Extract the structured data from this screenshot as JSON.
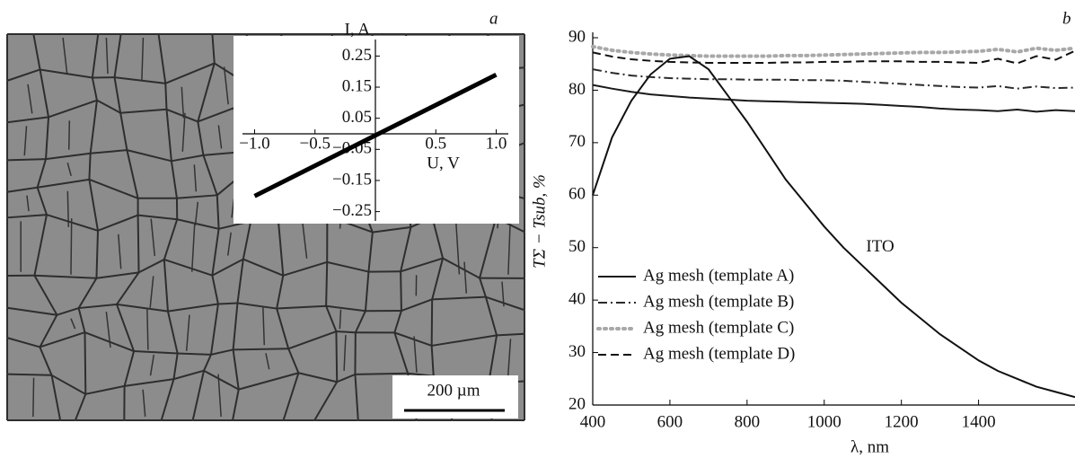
{
  "micrograph": {
    "panel_label": "a",
    "scale_bar": "200 µm"
  },
  "chart_data": [
    {
      "type": "line",
      "x_label": "U, V",
      "y_label": "I, A",
      "axes_at_zero": true,
      "x": [
        -1,
        1
      ],
      "values": [
        -0.2,
        0.19
      ],
      "color": "#000000",
      "xlim": [
        -1.1,
        1.1
      ],
      "ylim": [
        -0.28,
        0.28
      ],
      "xticks": [
        {
          "value": -1,
          "label": "−1.0"
        },
        {
          "value": -0.5,
          "label": "−0.5"
        },
        0.5,
        {
          "value": 1,
          "label": "1.0"
        }
      ],
      "yticks": [
        0.25,
        0.15,
        0.05,
        {
          "value": -0.05,
          "label": "−0.05"
        },
        {
          "value": -0.15,
          "label": "−0.15"
        },
        {
          "value": -0.25,
          "label": "−0.25"
        }
      ]
    },
    {
      "type": "line",
      "panel_label": "b",
      "x_label": "λ, nm",
      "y_label": "TΣ − Tsub, %",
      "annotation": "ITO",
      "xlim": [
        400,
        1650
      ],
      "ylim": [
        20,
        90
      ],
      "xticks": [
        400,
        600,
        800,
        1000,
        1200,
        1400
      ],
      "yticks": [
        20,
        30,
        40,
        50,
        60,
        70,
        80,
        90
      ],
      "legend": "lower left",
      "x": [
        400,
        450,
        500,
        550,
        600,
        650,
        700,
        750,
        800,
        850,
        900,
        950,
        1000,
        1050,
        1100,
        1150,
        1200,
        1250,
        1300,
        1350,
        1400,
        1450,
        1500,
        1550,
        1600,
        1650
      ],
      "series": [
        {
          "name": "Ag mesh (template A)",
          "color": "#1a1a1a",
          "linestyle": "solid",
          "legend": true,
          "values": [
            81,
            80.3,
            79.7,
            79.2,
            78.9,
            78.6,
            78.4,
            78.2,
            78,
            77.9,
            77.8,
            77.7,
            77.6,
            77.5,
            77.4,
            77.2,
            77,
            76.8,
            76.5,
            76.3,
            76.2,
            76,
            76.3,
            75.9,
            76.2,
            76
          ]
        },
        {
          "name": "Ag mesh (template B)",
          "color": "#2a2a2a",
          "linestyle": "dash-dot",
          "legend": true,
          "values": [
            84,
            83.3,
            82.8,
            82.5,
            82.3,
            82.2,
            82.1,
            82.1,
            82,
            82,
            82,
            81.9,
            81.9,
            81.8,
            81.6,
            81.4,
            81.2,
            81,
            80.8,
            80.6,
            80.5,
            80.8,
            80.3,
            80.7,
            80.4,
            80.5
          ]
        },
        {
          "name": "Ag mesh (template C)",
          "color": "#a8a8a8",
          "linestyle": "dot",
          "legend": true,
          "values": [
            88.3,
            87.6,
            87.2,
            86.9,
            86.7,
            86.6,
            86.5,
            86.5,
            86.5,
            86.5,
            86.6,
            86.6,
            86.7,
            86.8,
            86.9,
            87,
            87.1,
            87.2,
            87.2,
            87.3,
            87.4,
            87.8,
            87.3,
            88,
            87.6,
            88
          ]
        },
        {
          "name": "Ag mesh (template D)",
          "color": "#111111",
          "linestyle": "dash",
          "legend": true,
          "values": [
            87.2,
            86.4,
            85.9,
            85.6,
            85.4,
            85.3,
            85.2,
            85.2,
            85.2,
            85.2,
            85.3,
            85.3,
            85.4,
            85.4,
            85.5,
            85.5,
            85.5,
            85.4,
            85.4,
            85.3,
            85.2,
            86,
            85.1,
            86.5,
            85.8,
            87.5
          ]
        },
        {
          "name": "ITO",
          "color": "#111111",
          "linestyle": "solid",
          "legend": false,
          "values": [
            60,
            71,
            78,
            83,
            86,
            86.5,
            84,
            79,
            74,
            68.5,
            63,
            58.5,
            54,
            50,
            46.5,
            43,
            39.5,
            36.5,
            33.5,
            31,
            28.5,
            26.5,
            25,
            23.5,
            22.5,
            21.5
          ]
        }
      ]
    }
  ]
}
